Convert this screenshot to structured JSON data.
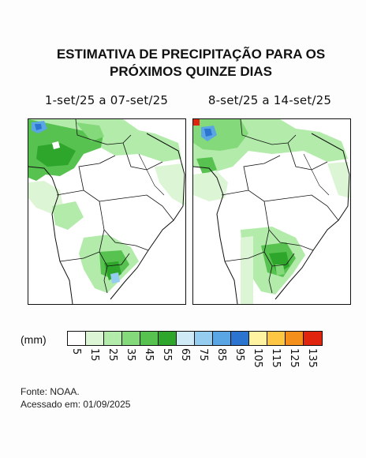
{
  "title": {
    "line1": "ESTIMATIVA DE PRECIPITAÇÃO PARA OS",
    "line2": "PRÓXIMOS QUINZE DIAS"
  },
  "panels": [
    {
      "period": "1-set/25 a 07-set/25"
    },
    {
      "period": "8-set/25 a 14-set/25"
    }
  ],
  "legend": {
    "unit": "(mm)",
    "ticks": [
      "5",
      "15",
      "25",
      "35",
      "45",
      "55",
      "65",
      "75",
      "85",
      "95",
      "105",
      "115",
      "125",
      "135"
    ],
    "colors": [
      "#ffffff",
      "#dcf5d4",
      "#b2ebaa",
      "#84d97a",
      "#57c24f",
      "#2ea52b",
      "#cfe9f7",
      "#95cdf0",
      "#5aa6e4",
      "#2b74d0",
      "#fff2a0",
      "#fdc743",
      "#f58f1c",
      "#e0240e"
    ]
  },
  "source": {
    "line1": "Fonte: NOAA.",
    "line2": "Acessado em: 01/09/2025"
  }
}
